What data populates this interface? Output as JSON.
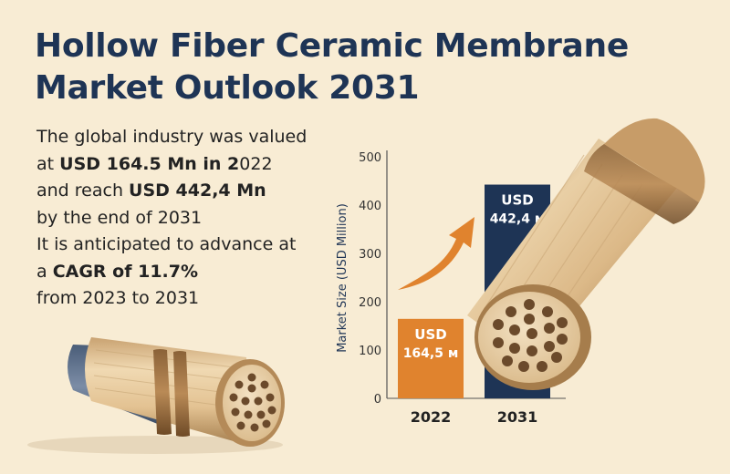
{
  "title_lines": [
    "Hollow Fiber Ceramic Membrane",
    "Market Outlook 2031"
  ],
  "description": {
    "line1": "The global industry was valued",
    "line2_pre": "at ",
    "line2_bold": "USD 164.5 Mn in 2",
    "line2_post": "022",
    "line3_pre": "and reach ",
    "line3_bold": "USD 442,4 Mn",
    "line4": "by the end of 2031",
    "line5": "It is anticipated to advance at",
    "line6_pre": "a ",
    "line6_bold": "CAGR of 11.7%",
    "line7": "from 2023 to 2031"
  },
  "colors": {
    "title": "#1e3455",
    "bar_2022": "#e0832e",
    "bar_2031": "#1e3455",
    "arrow": "#e0832e",
    "background": "#f8ecd4"
  },
  "chart_data": {
    "type": "bar",
    "categories": [
      "2022",
      "2031"
    ],
    "values": [
      164.5,
      442.4
    ],
    "bar_labels": [
      {
        "line1": "USD",
        "line2": "164,5 м"
      },
      {
        "line1": "USD",
        "line2": "442,4 м"
      }
    ],
    "ylabel": "Market Size (USD Million)",
    "yticks": [
      0,
      100,
      200,
      300,
      400,
      500
    ],
    "ylim": [
      0,
      500
    ],
    "grid": false,
    "legend": "none",
    "trend_arrow": true
  },
  "illustrations": [
    "ceramic-membrane-tube-small",
    "ceramic-membrane-tube-large"
  ]
}
